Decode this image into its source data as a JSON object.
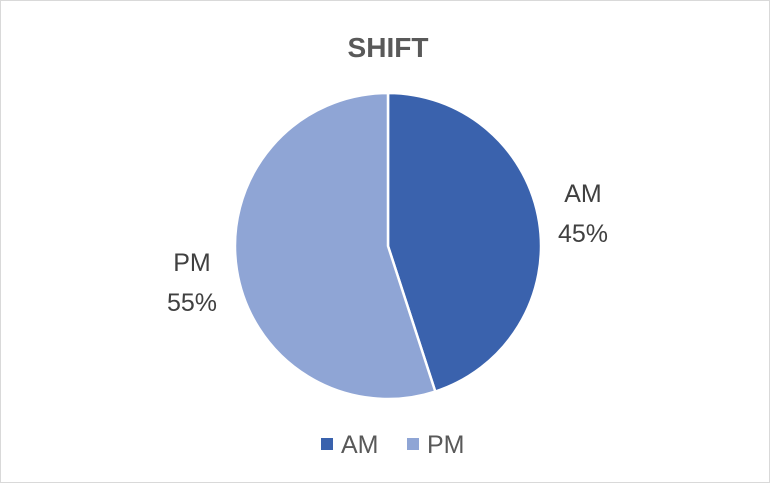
{
  "chart_data": {
    "type": "pie",
    "title": "SHIFT",
    "categories": [
      "AM",
      "PM"
    ],
    "values": [
      45,
      55
    ],
    "value_labels": [
      "45%",
      "55%"
    ],
    "colors": [
      "#3a62ad",
      "#8fa5d5"
    ],
    "legend": "bottom"
  }
}
